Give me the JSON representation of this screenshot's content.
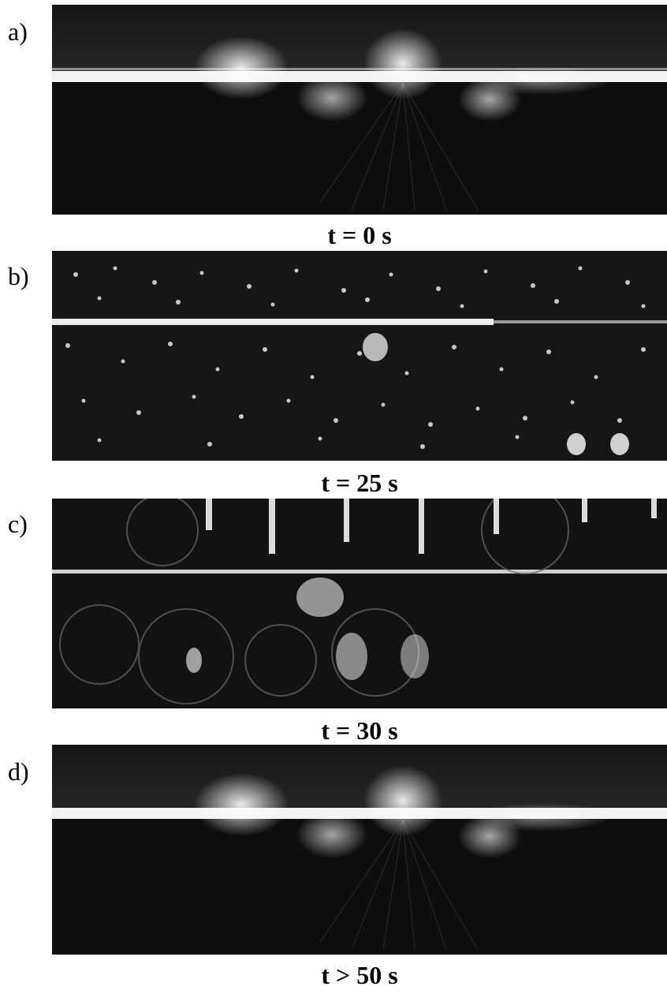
{
  "panels": [
    {
      "letter": "a)",
      "time": "t = 0 s"
    },
    {
      "letter": "b)",
      "time": "t = 25 s"
    },
    {
      "letter": "c)",
      "time": "t = 30 s"
    },
    {
      "letter": "d)",
      "time": "t > 50 s"
    }
  ]
}
